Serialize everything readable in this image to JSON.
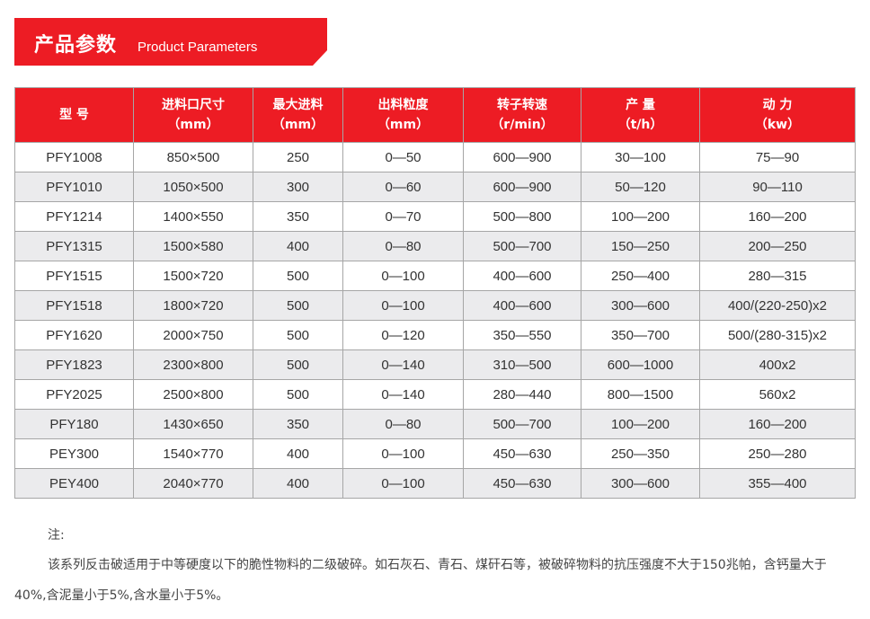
{
  "banner": {
    "title_cn": "产品参数",
    "title_en": "Product Parameters"
  },
  "colors": {
    "accent": "#ed1c24",
    "stripe": "#ebebed",
    "border": "#a6a6a6"
  },
  "table": {
    "headers": [
      {
        "line1": "型 号",
        "line2": ""
      },
      {
        "line1": "进料口尺寸",
        "line2": "（mm）"
      },
      {
        "line1": "最大进料",
        "line2": "（mm）"
      },
      {
        "line1": "出料粒度",
        "line2": "（mm）"
      },
      {
        "line1": "转子转速",
        "line2": "（r/min）"
      },
      {
        "line1": "产 量",
        "line2": "（t/h）"
      },
      {
        "line1": "动 力",
        "line2": "（kw）"
      }
    ],
    "rows": [
      [
        "PFY1008",
        "850×500",
        "250",
        "0—50",
        "600—900",
        "30—100",
        "75—90"
      ],
      [
        "PFY1010",
        "1050×500",
        "300",
        "0—60",
        "600—900",
        "50—120",
        "90—110"
      ],
      [
        "PFY1214",
        "1400×550",
        "350",
        "0—70",
        "500—800",
        "100—200",
        "160—200"
      ],
      [
        "PFY1315",
        "1500×580",
        "400",
        "0—80",
        "500—700",
        "150—250",
        "200—250"
      ],
      [
        "PFY1515",
        "1500×720",
        "500",
        "0—100",
        "400—600",
        "250—400",
        "280—315"
      ],
      [
        "PFY1518",
        "1800×720",
        "500",
        "0—100",
        "400—600",
        "300—600",
        "400/(220-250)x2"
      ],
      [
        "PFY1620",
        "2000×750",
        "500",
        "0—120",
        "350—550",
        "350—700",
        "500/(280-315)x2"
      ],
      [
        "PFY1823",
        "2300×800",
        "500",
        "0—140",
        "310—500",
        "600—1000",
        "400x2"
      ],
      [
        "PFY2025",
        "2500×800",
        "500",
        "0—140",
        "280—440",
        "800—1500",
        "560x2"
      ],
      [
        "PFY180",
        "1430×650",
        "350",
        "0—80",
        "500—700",
        "100—200",
        "160—200"
      ],
      [
        "PEY300",
        "1540×770",
        "400",
        "0—100",
        "450—630",
        "250—350",
        "250—280"
      ],
      [
        "PEY400",
        "2040×770",
        "400",
        "0—100",
        "450—630",
        "300—600",
        "355—400"
      ]
    ]
  },
  "note": {
    "label": "注:",
    "text": "该系列反击破适用于中等硬度以下的脆性物料的二级破碎。如石灰石、青石、煤矸石等，被破碎物料的抗压强度不大于150兆帕，含钙量大于40%,含泥量小于5%,含水量小于5%。"
  }
}
